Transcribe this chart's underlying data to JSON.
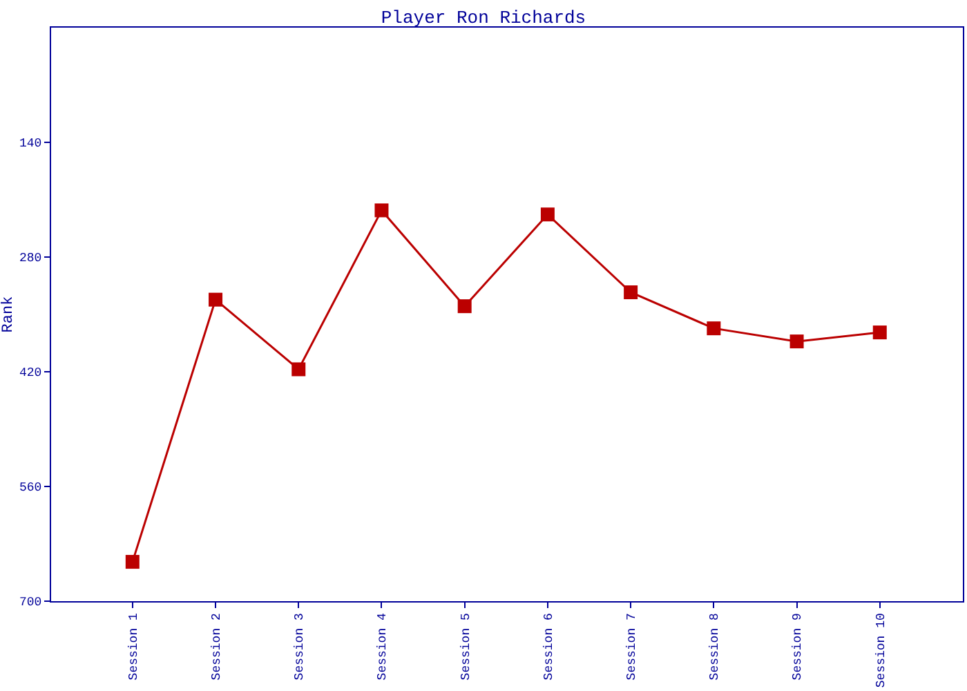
{
  "chart_data": {
    "type": "line",
    "title": "Player Ron Richards",
    "ylabel": "Rank",
    "categories": [
      "Session 1",
      "Session 2",
      "Session 3",
      "Session 4",
      "Session 5",
      "Session 6",
      "Session 7",
      "Session 8",
      "Session 9",
      "Session 10"
    ],
    "series": [
      {
        "color": "#bb0000",
        "values": [
          652,
          332,
          417,
          223,
          340,
          228,
          323,
          367,
          383,
          372
        ]
      }
    ],
    "ylim": [
      700,
      0
    ],
    "yticks": [
      140,
      280,
      420,
      560,
      700
    ],
    "marker": "square",
    "line_style": "solid"
  }
}
